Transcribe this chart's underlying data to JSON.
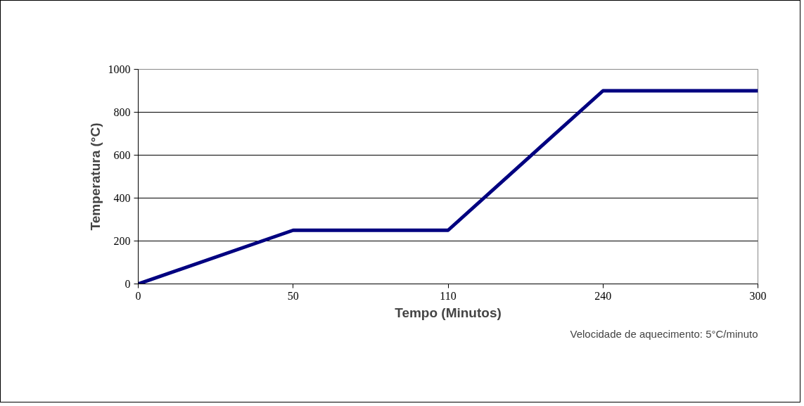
{
  "chart_data": {
    "type": "line",
    "xlabel": "Tempo (Minutos)",
    "ylabel": "Temperatura (°C)",
    "categories": [
      "0",
      "50",
      "110",
      "240",
      "300"
    ],
    "series": [
      {
        "color": "#000080",
        "values": [
          0,
          250,
          250,
          900,
          900
        ]
      }
    ],
    "ylim": [
      0,
      1000
    ],
    "yticks": [
      0,
      200,
      400,
      600,
      800,
      1000
    ],
    "grid": "y",
    "annotations": [
      "Velocidade de aquecimento: 5°C/minuto"
    ]
  }
}
